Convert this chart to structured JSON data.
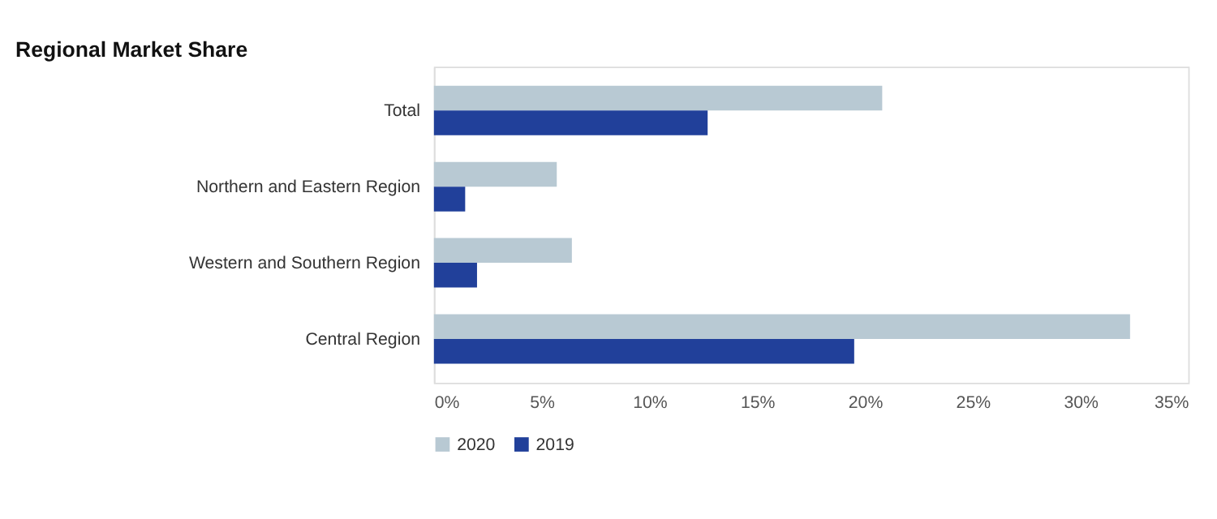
{
  "chart_data": {
    "type": "bar",
    "orientation": "horizontal",
    "title": "Regional Market Share",
    "categories": [
      "Total",
      "Northern and Eastern Region",
      "Western and Southern Region",
      "Central Region"
    ],
    "series": [
      {
        "name": "2020",
        "color": "#b8c9d3",
        "values": [
          20.8,
          5.7,
          6.4,
          32.3
        ]
      },
      {
        "name": "2019",
        "color": "#21409a",
        "values": [
          12.7,
          1.45,
          2.0,
          19.5
        ]
      }
    ],
    "xlim": [
      0,
      35
    ],
    "xticks": [
      {
        "value": 0,
        "label": "0%"
      },
      {
        "value": 5,
        "label": "5%"
      },
      {
        "value": 10,
        "label": "10%"
      },
      {
        "value": 15,
        "label": "15%"
      },
      {
        "value": 20,
        "label": "20%"
      },
      {
        "value": 25,
        "label": "25%"
      },
      {
        "value": 30,
        "label": "30%"
      },
      {
        "value": 35,
        "label": "35%"
      }
    ],
    "grid": false,
    "legend": "bottom"
  }
}
